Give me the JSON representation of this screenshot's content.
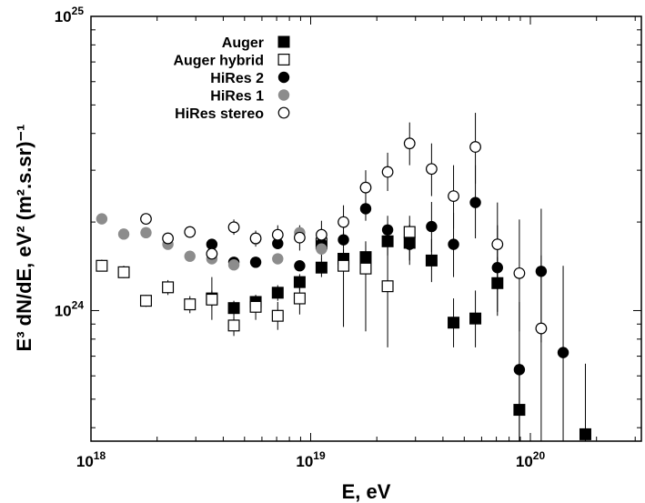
{
  "chart_data": {
    "type": "scatter",
    "xlabel": "E, eV",
    "ylabel": "E³ dN/dE, eV² (m².s.sr)⁻¹",
    "xscale": "log",
    "yscale": "log",
    "xlim": [
      1e+18,
      3.2e+20
    ],
    "ylim": [
      3.6e+23,
      1e+25
    ],
    "x_ticks": [
      {
        "value": 1e+18,
        "base": "10",
        "exp": "18"
      },
      {
        "value": 1e+19,
        "base": "10",
        "exp": "19"
      },
      {
        "value": 1e+20,
        "base": "10",
        "exp": "20"
      }
    ],
    "y_ticks": [
      {
        "value": 1e+24,
        "base": "10",
        "exp": "24"
      },
      {
        "value": 1e+25,
        "base": "10",
        "exp": "25"
      }
    ],
    "legend_position": "top-left",
    "series": [
      {
        "name": "Auger",
        "marker": "filled-square",
        "color": "#000000",
        "points": [
          {
            "x": 3.55e+18,
            "y": 1.1e+24,
            "lo": 1.03e+24,
            "hi": 1.17e+24
          },
          {
            "x": 4.47e+18,
            "y": 1.02e+24,
            "lo": 9.6e+23,
            "hi": 1.08e+24
          },
          {
            "x": 5.62e+18,
            "y": 1.07e+24,
            "lo": 1.01e+24,
            "hi": 1.13e+24
          },
          {
            "x": 7.08e+18,
            "y": 1.15e+24,
            "lo": 1.08e+24,
            "hi": 1.22e+24
          },
          {
            "x": 8.91e+18,
            "y": 1.25e+24,
            "lo": 1.17e+24,
            "hi": 1.33e+24
          },
          {
            "x": 1.12e+19,
            "y": 1.4e+24,
            "lo": 1.3e+24,
            "hi": 1.5e+24
          },
          {
            "x": 1.41e+19,
            "y": 1.5e+24,
            "lo": 1.38e+24,
            "hi": 1.62e+24
          },
          {
            "x": 1.78e+19,
            "y": 1.52e+24,
            "lo": 1.38e+24,
            "hi": 1.67e+24
          },
          {
            "x": 2.24e+19,
            "y": 1.72e+24,
            "lo": 1.54e+24,
            "hi": 1.92e+24
          },
          {
            "x": 2.82e+19,
            "y": 1.7e+24,
            "lo": 1.48e+24,
            "hi": 1.95e+24
          },
          {
            "x": 3.55e+19,
            "y": 1.48e+24,
            "lo": 1.25e+24,
            "hi": 1.75e+24
          },
          {
            "x": 4.47e+19,
            "y": 9.1e+23,
            "lo": 7.5e+23,
            "hi": 1.1e+24
          },
          {
            "x": 5.62e+19,
            "y": 9.4e+23,
            "lo": 7.5e+23,
            "hi": 1.17e+24
          },
          {
            "x": 7.08e+19,
            "y": 1.24e+24,
            "lo": 9.6e+23,
            "hi": 1.52e+24
          },
          {
            "x": 8.91e+19,
            "y": 4.6e+23,
            "lo": 3.6e+23,
            "hi": 6.6e+23
          },
          {
            "x": 1.78e+20,
            "y": 3.8e+23,
            "lo": 3.6e+23,
            "hi": 6.6e+23
          }
        ]
      },
      {
        "name": "Auger hybrid",
        "marker": "open-square",
        "color": "#000000",
        "points": [
          {
            "x": 1.12e+18,
            "y": 1.42e+24,
            "lo": 1.36e+24,
            "hi": 1.49e+24
          },
          {
            "x": 1.41e+18,
            "y": 1.35e+24,
            "lo": 1.29e+24,
            "hi": 1.42e+24
          },
          {
            "x": 1.78e+18,
            "y": 1.08e+24,
            "lo": 1.03e+24,
            "hi": 1.13e+24
          },
          {
            "x": 2.24e+18,
            "y": 1.2e+24,
            "lo": 1.13e+24,
            "hi": 1.27e+24
          },
          {
            "x": 2.82e+18,
            "y": 1.05e+24,
            "lo": 9.8e+23,
            "hi": 1.12e+24
          },
          {
            "x": 3.55e+18,
            "y": 1.09e+24,
            "lo": 9.3e+23,
            "hi": 1.3e+24
          },
          {
            "x": 4.47e+18,
            "y": 8.9e+23,
            "lo": 8.2e+23,
            "hi": 9.6e+23
          },
          {
            "x": 5.62e+18,
            "y": 1.03e+24,
            "lo": 9.3e+23,
            "hi": 1.13e+24
          },
          {
            "x": 7.08e+18,
            "y": 9.6e+23,
            "lo": 8.6e+23,
            "hi": 1.07e+24
          },
          {
            "x": 8.91e+18,
            "y": 1.1e+24,
            "lo": 9.7e+23,
            "hi": 1.25e+24
          },
          {
            "x": 1.12e+19,
            "y": 1.69e+24,
            "lo": 1.49e+24,
            "hi": 1.9e+24
          },
          {
            "x": 1.41e+19,
            "y": 1.42e+24,
            "lo": 8.8e+23,
            "hi": 1.62e+24
          },
          {
            "x": 1.78e+19,
            "y": 1.39e+24,
            "lo": 8.5e+23,
            "hi": 1.72e+24
          },
          {
            "x": 2.24e+19,
            "y": 1.21e+24,
            "lo": 7.5e+23,
            "hi": 1.72e+24
          },
          {
            "x": 2.82e+19,
            "y": 1.85e+24,
            "lo": 1.6e+24,
            "hi": 2.1e+24
          }
        ]
      },
      {
        "name": "HiRes 2",
        "marker": "filled-circle",
        "color": "#000000",
        "points": [
          {
            "x": 3.55e+18,
            "y": 1.68e+24,
            "lo": 1.64e+24,
            "hi": 1.72e+24
          },
          {
            "x": 4.47e+18,
            "y": 1.46e+24,
            "lo": 1.42e+24,
            "hi": 1.5e+24
          },
          {
            "x": 5.62e+18,
            "y": 1.46e+24,
            "lo": 1.42e+24,
            "hi": 1.5e+24
          },
          {
            "x": 7.08e+18,
            "y": 1.69e+24,
            "lo": 1.64e+24,
            "hi": 1.74e+24
          },
          {
            "x": 8.91e+18,
            "y": 1.42e+24,
            "lo": 1.37e+24,
            "hi": 1.47e+24
          },
          {
            "x": 1.12e+19,
            "y": 1.69e+24,
            "lo": 1.6e+24,
            "hi": 1.78e+24
          },
          {
            "x": 1.41e+19,
            "y": 1.74e+24,
            "lo": 1.62e+24,
            "hi": 1.86e+24
          },
          {
            "x": 1.78e+19,
            "y": 2.22e+24,
            "lo": 2.02e+24,
            "hi": 2.44e+24
          },
          {
            "x": 2.24e+19,
            "y": 1.88e+24,
            "lo": 1.66e+24,
            "hi": 2.1e+24
          },
          {
            "x": 2.82e+19,
            "y": 1.68e+24,
            "lo": 1.43e+24,
            "hi": 1.96e+24
          },
          {
            "x": 3.55e+19,
            "y": 1.93e+24,
            "lo": 1.58e+24,
            "hi": 2.34e+24
          },
          {
            "x": 4.47e+19,
            "y": 1.68e+24,
            "lo": 1.3e+24,
            "hi": 2.15e+24
          },
          {
            "x": 5.62e+19,
            "y": 2.33e+24,
            "lo": 1.76e+24,
            "hi": 3.12e+24
          },
          {
            "x": 7.08e+19,
            "y": 1.4e+24,
            "lo": 9.9e+23,
            "hi": 1.95e+24
          },
          {
            "x": 8.91e+19,
            "y": 6.3e+23,
            "lo": 3.6e+23,
            "hi": 1.07e+24
          },
          {
            "x": 1.12e+20,
            "y": 1.36e+24,
            "lo": 7.8e+23,
            "hi": 2.22e+24
          },
          {
            "x": 1.41e+20,
            "y": 7.2e+23,
            "lo": 3.6e+23,
            "hi": 1.42e+24
          }
        ]
      },
      {
        "name": "HiRes 1",
        "marker": "gray-circle",
        "color": "#8c8c8c",
        "points": [
          {
            "x": 1.12e+18,
            "y": 2.05e+24,
            "lo": 1.99e+24,
            "hi": 2.11e+24
          },
          {
            "x": 1.41e+18,
            "y": 1.82e+24,
            "lo": 1.77e+24,
            "hi": 1.87e+24
          },
          {
            "x": 1.78e+18,
            "y": 1.84e+24,
            "lo": 1.79e+24,
            "hi": 1.89e+24
          },
          {
            "x": 2.24e+18,
            "y": 1.68e+24,
            "lo": 1.63e+24,
            "hi": 1.73e+24
          },
          {
            "x": 2.82e+18,
            "y": 1.53e+24,
            "lo": 1.49e+24,
            "hi": 1.57e+24
          },
          {
            "x": 3.55e+18,
            "y": 1.5e+24,
            "lo": 1.46e+24,
            "hi": 1.54e+24
          },
          {
            "x": 4.47e+18,
            "y": 1.43e+24,
            "lo": 1.39e+24,
            "hi": 1.47e+24
          },
          {
            "x": 5.62e+18,
            "y": 1.75e+24,
            "lo": 1.7e+24,
            "hi": 1.8e+24
          },
          {
            "x": 7.08e+18,
            "y": 1.5e+24,
            "lo": 1.45e+24,
            "hi": 1.55e+24
          },
          {
            "x": 8.91e+18,
            "y": 1.84e+24,
            "lo": 1.78e+24,
            "hi": 1.9e+24
          },
          {
            "x": 1.12e+19,
            "y": 1.62e+24,
            "lo": 1.55e+24,
            "hi": 1.69e+24
          }
        ]
      },
      {
        "name": "HiRes stereo",
        "marker": "open-circle",
        "color": "#000000",
        "points": [
          {
            "x": 1.78e+18,
            "y": 2.05e+24,
            "lo": 1.99e+24,
            "hi": 2.11e+24
          },
          {
            "x": 2.24e+18,
            "y": 1.76e+24,
            "lo": 1.71e+24,
            "hi": 1.81e+24
          },
          {
            "x": 2.82e+18,
            "y": 1.85e+24,
            "lo": 1.79e+24,
            "hi": 1.91e+24
          },
          {
            "x": 3.55e+18,
            "y": 1.56e+24,
            "lo": 1.51e+24,
            "hi": 1.61e+24
          },
          {
            "x": 4.47e+18,
            "y": 1.92e+24,
            "lo": 1.81e+24,
            "hi": 2.04e+24
          },
          {
            "x": 5.62e+18,
            "y": 1.76e+24,
            "lo": 1.65e+24,
            "hi": 1.87e+24
          },
          {
            "x": 7.08e+18,
            "y": 1.81e+24,
            "lo": 1.67e+24,
            "hi": 1.95e+24
          },
          {
            "x": 8.91e+18,
            "y": 1.77e+24,
            "lo": 1.6e+24,
            "hi": 1.95e+24
          },
          {
            "x": 1.12e+19,
            "y": 1.81e+24,
            "lo": 1.61e+24,
            "hi": 2.02e+24
          },
          {
            "x": 1.41e+19,
            "y": 2e+24,
            "lo": 1.75e+24,
            "hi": 2.28e+24
          },
          {
            "x": 1.78e+19,
            "y": 2.62e+24,
            "lo": 2.28e+24,
            "hi": 3e+24
          },
          {
            "x": 2.24e+19,
            "y": 2.96e+24,
            "lo": 2.55e+24,
            "hi": 3.44e+24
          },
          {
            "x": 2.82e+19,
            "y": 3.7e+24,
            "lo": 3.12e+24,
            "hi": 4.36e+24
          },
          {
            "x": 3.55e+19,
            "y": 3.03e+24,
            "lo": 2.45e+24,
            "hi": 3.7e+24
          },
          {
            "x": 4.47e+19,
            "y": 2.45e+24,
            "lo": 1.9e+24,
            "hi": 3.12e+24
          },
          {
            "x": 5.62e+19,
            "y": 3.6e+24,
            "lo": 2.7e+24,
            "hi": 4.7e+24
          },
          {
            "x": 7.08e+19,
            "y": 1.68e+24,
            "lo": 1.18e+24,
            "hi": 2.33e+24
          },
          {
            "x": 8.91e+19,
            "y": 1.34e+24,
            "lo": 8.5e+23,
            "hi": 2.04e+24
          },
          {
            "x": 1.12e+20,
            "y": 8.7e+23,
            "lo": 3.6e+23,
            "hi": 1.54e+24
          }
        ]
      }
    ]
  }
}
